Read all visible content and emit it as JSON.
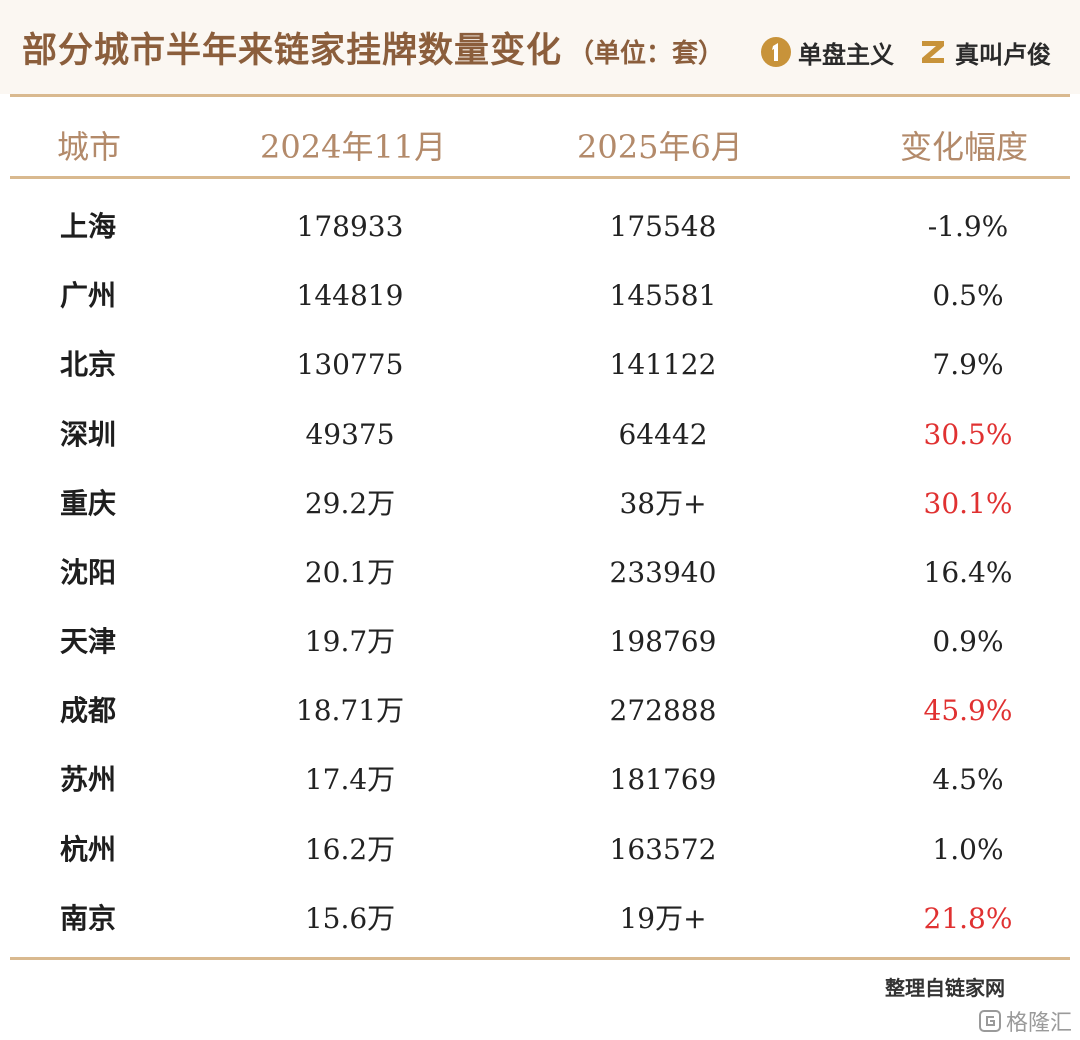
{
  "header": {
    "title": "部分城市半年来链家挂牌数量变化",
    "unit": "（单位：套）",
    "brand_1": "单盘主义",
    "brand_2": "真叫卢俊"
  },
  "table": {
    "headers": {
      "city": "城市",
      "nov": "2024年11月",
      "jun": "2025年6月",
      "change": "变化幅度"
    },
    "rows": [
      {
        "city": "上海",
        "nov": "178933",
        "jun": "175548",
        "change": "-1.9%",
        "highlight": false
      },
      {
        "city": "广州",
        "nov": "144819",
        "jun": "145581",
        "change": "0.5%",
        "highlight": false
      },
      {
        "city": "北京",
        "nov": "130775",
        "jun": "141122",
        "change": "7.9%",
        "highlight": false
      },
      {
        "city": "深圳",
        "nov": "49375",
        "jun": "64442",
        "change": "30.5%",
        "highlight": true
      },
      {
        "city": "重庆",
        "nov": "29.2万",
        "jun": "38万+",
        "change": "30.1%",
        "highlight": true
      },
      {
        "city": "沈阳",
        "nov": "20.1万",
        "jun": "233940",
        "change": "16.4%",
        "highlight": false
      },
      {
        "city": "天津",
        "nov": "19.7万",
        "jun": "198769",
        "change": "0.9%",
        "highlight": false
      },
      {
        "city": "成都",
        "nov": "18.71万",
        "jun": "272888",
        "change": "45.9%",
        "highlight": true
      },
      {
        "city": "苏州",
        "nov": "17.4万",
        "jun": "181769",
        "change": "4.5%",
        "highlight": false
      },
      {
        "city": "杭州",
        "nov": "16.2万",
        "jun": "163572",
        "change": "1.0%",
        "highlight": false
      },
      {
        "city": "南京",
        "nov": "15.6万",
        "jun": "19万+",
        "change": "21.8%",
        "highlight": true
      }
    ]
  },
  "footer": {
    "source": "整理自链家网",
    "watermark": "格隆汇"
  },
  "colors": {
    "title": "#8b5e3c",
    "header_text": "#b38a6a",
    "rule": "#d9b98f",
    "highlight": "#e03131",
    "brand_gold": "#c8933a"
  },
  "icons": {
    "brand_1": "number-one-circle-icon",
    "brand_2": "stylized-z-icon",
    "watermark": "gelonghui-logo-icon"
  }
}
